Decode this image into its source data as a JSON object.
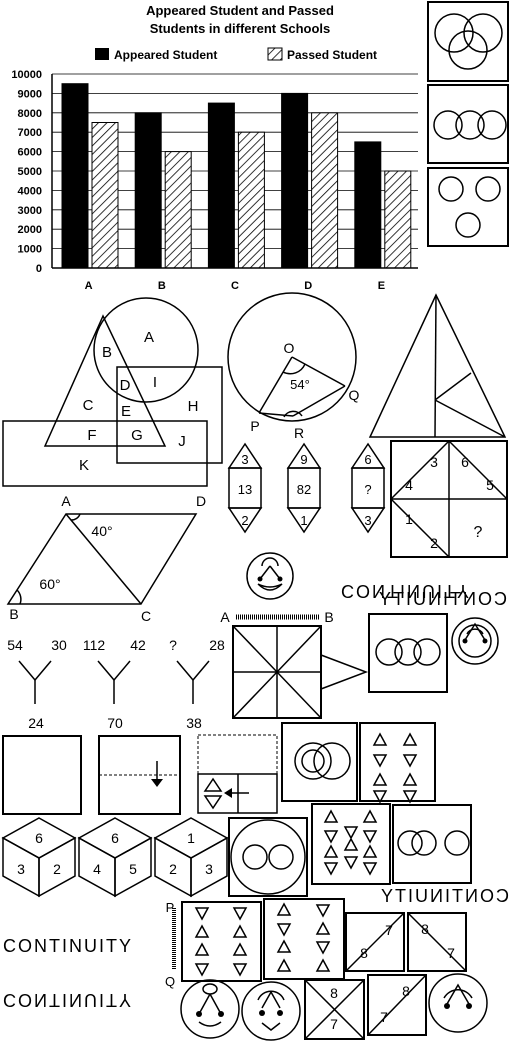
{
  "chart_data": {
    "type": "bar",
    "title": "Appeared Student and Passed Students in different Schools",
    "title_lines": [
      "Appeared Student and Passed",
      "Students in different Schools"
    ],
    "categories": [
      "A",
      "B",
      "C",
      "D",
      "E"
    ],
    "series": [
      {
        "name": "Appeared Student",
        "values": [
          9500,
          8000,
          8500,
          9000,
          6500
        ],
        "fill": "solid-black"
      },
      {
        "name": "Passed Student",
        "values": [
          7500,
          6000,
          7000,
          8000,
          5000
        ],
        "fill": "hatched"
      }
    ],
    "ylim": [
      0,
      10000
    ],
    "yticks": [
      0,
      1000,
      2000,
      3000,
      4000,
      5000,
      6000,
      7000,
      8000,
      9000,
      10000
    ],
    "grid": true,
    "legend_position": "top"
  },
  "venn_fig": {
    "labels": [
      "A",
      "B",
      "I",
      "D",
      "E",
      "C",
      "H",
      "F",
      "G",
      "J",
      "K"
    ]
  },
  "circle_fig": {
    "center": "O",
    "angle": "54°",
    "p": "P",
    "q": "Q",
    "r": "R"
  },
  "hex_series": [
    {
      "top": "3",
      "mid": "13",
      "bottom": "2"
    },
    {
      "top": "9",
      "mid": "82",
      "bottom": "1"
    },
    {
      "top": "6",
      "mid": "?",
      "bottom": "3"
    }
  ],
  "square_puzzle": [
    "3",
    "6",
    "4",
    "5",
    "1",
    "?",
    "2"
  ],
  "parallelogram": {
    "a": "A",
    "d": "D",
    "b": "B",
    "c": "C",
    "angle1": "40°",
    "angle2": "60°"
  },
  "words": {
    "continuity": "CONTINUITY"
  },
  "mirror_labels": {
    "a": "A",
    "b": "B",
    "p": "P",
    "q": "Q"
  },
  "y_series": [
    {
      "left": "54",
      "right": "30",
      "bottom": "24"
    },
    {
      "left": "112",
      "right": "42",
      "bottom": "70"
    },
    {
      "left": "?",
      "right": "28",
      "bottom": "38"
    }
  ],
  "dice": [
    {
      "top": "6",
      "left": "3",
      "right": "2"
    },
    {
      "top": "6",
      "left": "4",
      "right": "5"
    },
    {
      "top": "1",
      "left": "2",
      "right": "3"
    }
  ],
  "tri_squares": [
    {
      "top": "7",
      "bottom": "8"
    },
    {
      "top": "8",
      "bottom": "7"
    },
    {
      "top": "8",
      "bottom": "7"
    },
    {
      "top": "8",
      "bottom": "7"
    }
  ]
}
